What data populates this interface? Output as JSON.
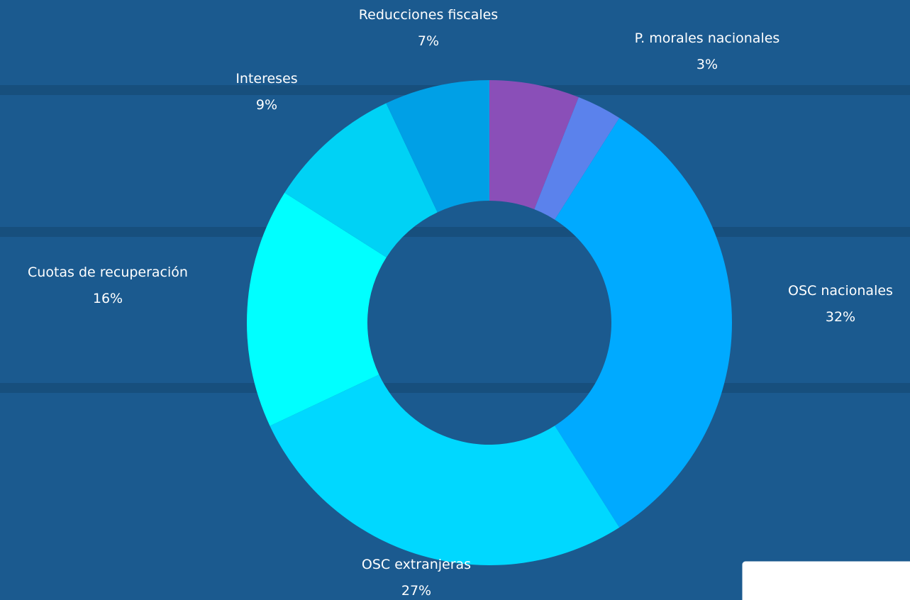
{
  "chart_data": {
    "type": "donut",
    "categories": [
      null,
      "P. morales nacionales",
      "OSC nacionales",
      "OSC extranjeras",
      "Cuotas de recuperación",
      "Intereses",
      "Reducciones fiscales"
    ],
    "values": [
      6,
      3,
      32,
      27,
      16,
      9,
      7
    ],
    "value_labels": [
      null,
      "3%",
      "32%",
      "27%",
      "16%",
      "9%",
      "7%"
    ],
    "colors": [
      "#8a4fb8",
      "#5b82ec",
      "#00aaff",
      "#00d8ff",
      "#00ffff",
      "#00d2f5",
      "#00a0e6"
    ]
  }
}
